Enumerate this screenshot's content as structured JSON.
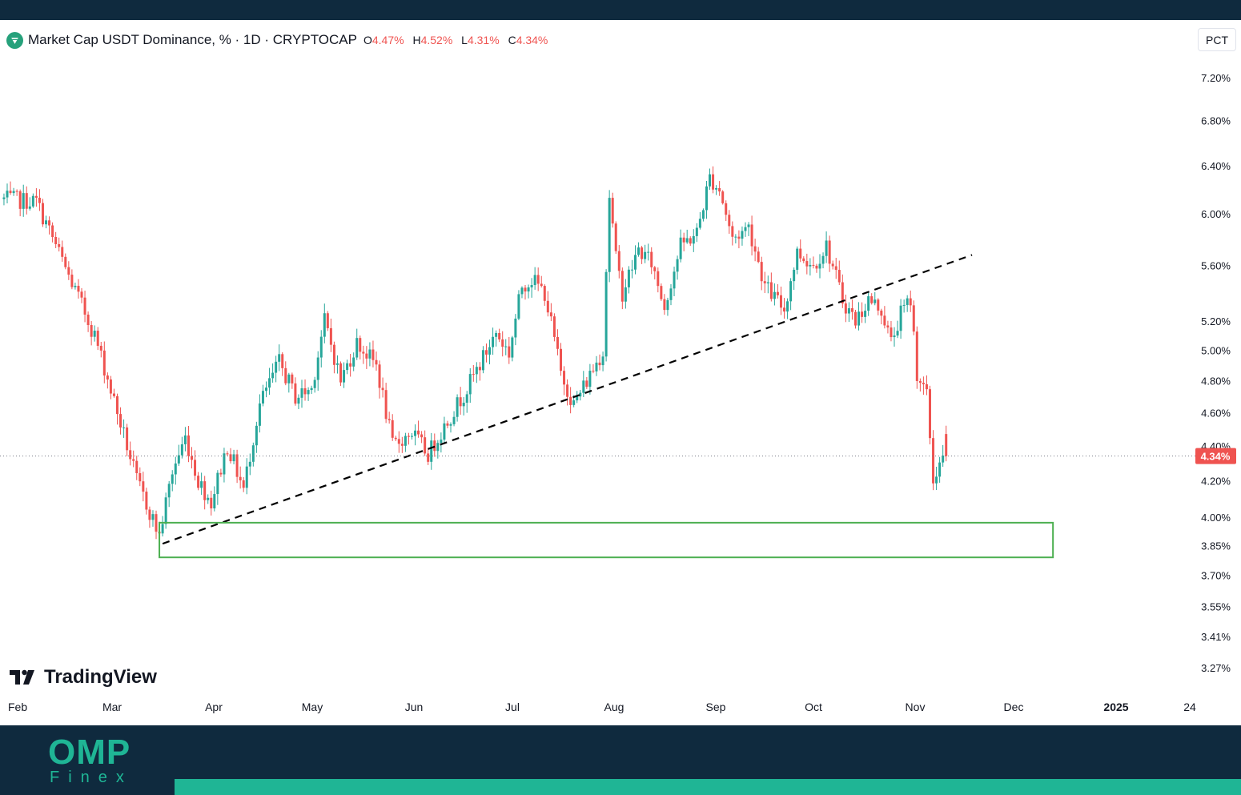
{
  "header": {
    "symbol_title": "Market Cap USDT Dominance, % · 1D · CRYPTOCAP",
    "open_label": "O",
    "open_value": "4.47%",
    "high_label": "H",
    "high_value": "4.52%",
    "low_label": "L",
    "low_value": "4.31%",
    "close_label": "C",
    "close_value": "4.34%"
  },
  "scale_button": "PCT",
  "watermark": "TradingView",
  "brand": {
    "name": "OMP",
    "sub": "Finex"
  },
  "colors": {
    "up": "#26a69a",
    "down": "#ef5350",
    "zone": "#4caf50",
    "trendline": "#000000",
    "brand": "#1fb595",
    "frame": "#0f2a3e"
  },
  "chart_data": {
    "type": "candlestick",
    "title": "Market Cap USDT Dominance, % · 1D · CRYPTOCAP",
    "y_scale": "log",
    "ylim": [
      3.22,
      7.4
    ],
    "y_ticks": [
      "7.20%",
      "6.80%",
      "6.40%",
      "6.00%",
      "5.60%",
      "5.20%",
      "5.00%",
      "4.80%",
      "4.60%",
      "4.40%",
      "4.20%",
      "4.00%",
      "3.85%",
      "3.70%",
      "3.55%",
      "3.41%",
      "3.27%"
    ],
    "x_ticks": [
      "Feb",
      "Mar",
      "Apr",
      "May",
      "Jun",
      "Jul",
      "Aug",
      "Sep",
      "Oct",
      "Nov",
      "Dec",
      "2025",
      "24"
    ],
    "x_range": [
      "2024-02-01",
      "2025-01-31"
    ],
    "last_price": {
      "value": 4.34,
      "label": "4.34%"
    },
    "path": [
      [
        "2024-01-31",
        6.12
      ],
      [
        "2024-02-10",
        6.1
      ],
      [
        "2024-02-20",
        5.52
      ],
      [
        "2024-02-28",
        5.1
      ],
      [
        "2024-03-06",
        4.6
      ],
      [
        "2024-03-12",
        4.2
      ],
      [
        "2024-03-19",
        3.9
      ],
      [
        "2024-03-23",
        4.25
      ],
      [
        "2024-03-27",
        4.45
      ],
      [
        "2024-03-31",
        4.2
      ],
      [
        "2024-04-04",
        4.08
      ],
      [
        "2024-04-09",
        4.4
      ],
      [
        "2024-04-14",
        4.15
      ],
      [
        "2024-04-19",
        4.65
      ],
      [
        "2024-04-25",
        4.92
      ],
      [
        "2024-04-30",
        4.7
      ],
      [
        "2024-05-05",
        4.75
      ],
      [
        "2024-05-09",
        5.2
      ],
      [
        "2024-05-14",
        4.8
      ],
      [
        "2024-05-19",
        5.05
      ],
      [
        "2024-05-25",
        4.9
      ],
      [
        "2024-05-30",
        4.4
      ],
      [
        "2024-06-05",
        4.48
      ],
      [
        "2024-06-10",
        4.35
      ],
      [
        "2024-06-16",
        4.55
      ],
      [
        "2024-06-22",
        4.75
      ],
      [
        "2024-06-27",
        4.95
      ],
      [
        "2024-07-01",
        5.12
      ],
      [
        "2024-07-05",
        4.98
      ],
      [
        "2024-07-09",
        5.45
      ],
      [
        "2024-07-12",
        5.5
      ],
      [
        "2024-07-16",
        5.4
      ],
      [
        "2024-07-21",
        4.85
      ],
      [
        "2024-07-25",
        4.65
      ],
      [
        "2024-07-29",
        4.8
      ],
      [
        "2024-08-03",
        5.0
      ],
      [
        "2024-08-05",
        6.15
      ],
      [
        "2024-08-07",
        5.65
      ],
      [
        "2024-08-09",
        5.4
      ],
      [
        "2024-08-14",
        5.72
      ],
      [
        "2024-08-18",
        5.62
      ],
      [
        "2024-08-22",
        5.3
      ],
      [
        "2024-08-27",
        5.75
      ],
      [
        "2024-09-01",
        5.85
      ],
      [
        "2024-09-05",
        6.3
      ],
      [
        "2024-09-08",
        6.2
      ],
      [
        "2024-09-12",
        5.8
      ],
      [
        "2024-09-17",
        5.9
      ],
      [
        "2024-09-22",
        5.45
      ],
      [
        "2024-09-28",
        5.28
      ],
      [
        "2024-10-02",
        5.7
      ],
      [
        "2024-10-07",
        5.6
      ],
      [
        "2024-10-11",
        5.75
      ],
      [
        "2024-10-16",
        5.35
      ],
      [
        "2024-10-20",
        5.2
      ],
      [
        "2024-10-24",
        5.35
      ],
      [
        "2024-10-28",
        5.28
      ],
      [
        "2024-10-31",
        5.05
      ],
      [
        "2024-11-03",
        5.25
      ],
      [
        "2024-11-06",
        5.35
      ],
      [
        "2024-11-08",
        4.85
      ],
      [
        "2024-11-11",
        4.7
      ],
      [
        "2024-11-13",
        4.2
      ],
      [
        "2024-11-15",
        4.3
      ],
      [
        "2024-11-17",
        4.34
      ]
    ],
    "annotations": [
      {
        "type": "trendline",
        "style": "dashed",
        "from": [
          "2024-03-20",
          3.86
        ],
        "to": [
          "2024-11-25",
          5.68
        ]
      },
      {
        "type": "rectangle",
        "from": [
          "2024-03-19",
          3.97
        ],
        "to": [
          "2024-12-20",
          3.79
        ]
      }
    ]
  }
}
